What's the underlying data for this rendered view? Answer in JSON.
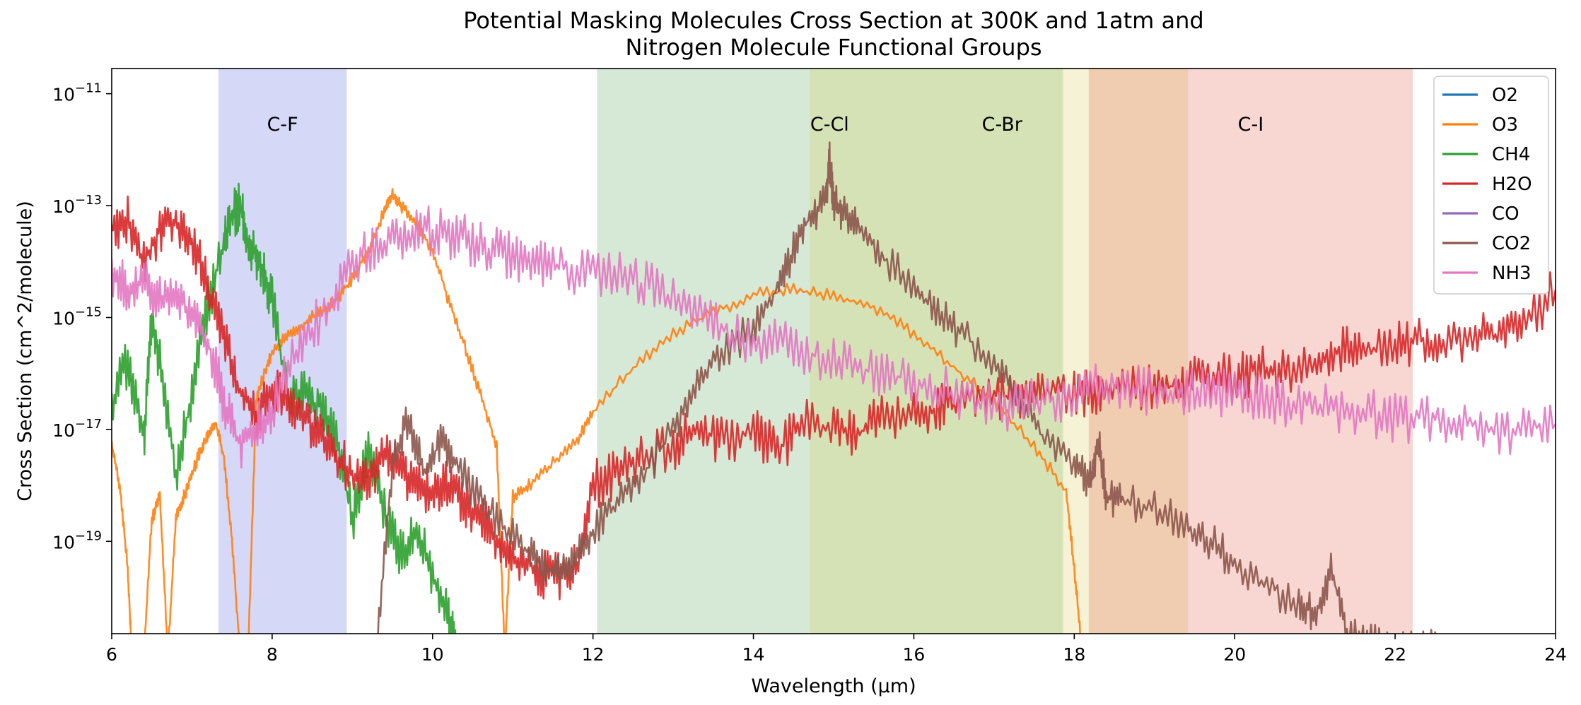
{
  "chart_data": {
    "type": "line",
    "title_lines": [
      "Potential Masking Molecules Cross Section at 300K and 1atm and",
      "Nitrogen Molecule Functional Groups"
    ],
    "xlabel": "Wavelength (μm)",
    "ylabel": "Cross Section (cm^2/molecule)",
    "xlim": [
      6,
      24
    ],
    "ylog": true,
    "ylim_exp": [
      -20.65,
      -10.55
    ],
    "x_ticks": [
      6,
      8,
      10,
      12,
      14,
      16,
      18,
      20,
      22,
      24
    ],
    "x_tick_labels": [
      "6",
      "8",
      "10",
      "12",
      "14",
      "16",
      "18",
      "20",
      "22",
      "24"
    ],
    "y_ticks_exp": [
      -11,
      -13,
      -15,
      -17,
      -19
    ],
    "y_tick_base": "10",
    "y_tick_exponents": [
      "−11",
      "−13",
      "−15",
      "−17",
      "−19"
    ],
    "grid": false,
    "legend_position": "top-right",
    "bands": [
      {
        "label": "C-F",
        "range": [
          7.33,
          8.93
        ],
        "color": "#d6d8f8",
        "label_x": 8.13
      },
      {
        "label": "",
        "range": [
          12.05,
          14.7
        ],
        "color": "#d6e8d6"
      },
      {
        "label": "C-Cl",
        "range": [
          14.7,
          17.86
        ],
        "color": "#d5e2b6",
        "label_x": 14.95
      },
      {
        "label": "C-Br",
        "range": [
          17.86,
          18.18
        ],
        "color": "#f5f2d6",
        "label_x": 17.1
      },
      {
        "label": "",
        "range": [
          18.18,
          19.42
        ],
        "color": "#f0cdb1"
      },
      {
        "label": "C-I",
        "range": [
          19.42,
          22.22
        ],
        "color": "#f8d6d2",
        "label_x": 20.2
      }
    ],
    "series": [
      {
        "name": "O2",
        "color": "#1f77b4",
        "x": [],
        "y_exp": []
      },
      {
        "name": "O3",
        "color": "#ff7f0e",
        "x": [
          6.0,
          6.1,
          6.2,
          6.25,
          6.3,
          6.4,
          6.5,
          6.6,
          6.7,
          6.8,
          6.9,
          7.0,
          7.1,
          7.2,
          7.3,
          7.4,
          7.5,
          7.6,
          7.7,
          7.8,
          7.9,
          8.0,
          8.2,
          8.4,
          8.6,
          8.8,
          9.0,
          9.2,
          9.4,
          9.5,
          9.6,
          9.8,
          10.0,
          10.2,
          10.4,
          10.6,
          10.8,
          10.9,
          11.0,
          11.2,
          11.5,
          11.8,
          12.0,
          12.5,
          13.0,
          13.5,
          14.0,
          14.5,
          15.0,
          15.5,
          16.0,
          16.5,
          17.0,
          17.5,
          17.9,
          18.0,
          18.1
        ],
        "y_exp": [
          -17.3,
          -18.0,
          -19.5,
          -21,
          -21,
          -21,
          -18.6,
          -18.2,
          -21,
          -18.6,
          -18.2,
          -17.8,
          -17.4,
          -17.1,
          -16.9,
          -17.5,
          -19.0,
          -21,
          -21,
          -16.5,
          -16.0,
          -15.6,
          -15.3,
          -15.1,
          -14.9,
          -14.7,
          -14.3,
          -13.8,
          -13.1,
          -12.8,
          -13.0,
          -13.3,
          -13.8,
          -14.7,
          -15.5,
          -16.4,
          -17.3,
          -21,
          -18.2,
          -18.0,
          -17.6,
          -17.2,
          -16.7,
          -15.9,
          -15.3,
          -14.9,
          -14.6,
          -14.5,
          -14.6,
          -14.8,
          -15.3,
          -15.9,
          -16.5,
          -17.3,
          -18.1,
          -19.5,
          -21
        ]
      },
      {
        "name": "CH4",
        "color": "#2ca02c",
        "x": [
          6.0,
          6.2,
          6.4,
          6.5,
          6.6,
          6.8,
          7.0,
          7.2,
          7.4,
          7.5,
          7.6,
          7.7,
          7.8,
          7.9,
          8.0,
          8.2,
          8.4,
          8.6,
          8.8,
          9.0,
          9.2,
          9.4,
          9.6,
          9.8,
          10.0,
          10.2,
          10.3
        ],
        "y_exp": [
          -16.5,
          -15.8,
          -17.2,
          -15.0,
          -15.8,
          -17.8,
          -16.3,
          -14.8,
          -13.6,
          -13.2,
          -13.0,
          -13.6,
          -13.9,
          -14.3,
          -14.7,
          -16.4,
          -16.4,
          -16.6,
          -17.2,
          -18.6,
          -17.4,
          -18.5,
          -19.2,
          -18.8,
          -19.6,
          -20.4,
          -21
        ]
      },
      {
        "name": "H2O",
        "color": "#d62728",
        "x": [
          6.0,
          6.2,
          6.4,
          6.6,
          6.8,
          7.0,
          7.2,
          7.4,
          7.6,
          7.8,
          8.0,
          8.2,
          8.4,
          8.6,
          8.8,
          9.0,
          9.2,
          9.4,
          9.6,
          9.8,
          10.0,
          10.2,
          10.4,
          10.6,
          10.8,
          11.0,
          11.2,
          11.4,
          11.6,
          11.8,
          12.0,
          12.3,
          12.6,
          13.0,
          13.3,
          13.6,
          14.0,
          14.3,
          14.6,
          15.0,
          15.3,
          15.6,
          16.0,
          16.3,
          16.6,
          17.0,
          17.3,
          17.6,
          18.0,
          18.3,
          18.6,
          19.0,
          19.3,
          19.6,
          20.0,
          20.3,
          20.6,
          21.0,
          21.3,
          21.6,
          22.0,
          22.3,
          22.6,
          23.0,
          23.3,
          23.6,
          24.0
        ],
        "y_exp": [
          -13.4,
          -13.2,
          -14.0,
          -13.4,
          -13.3,
          -13.6,
          -14.5,
          -15.4,
          -16.3,
          -16.8,
          -16.3,
          -16.5,
          -16.8,
          -17.0,
          -17.5,
          -17.8,
          -17.9,
          -17.5,
          -17.7,
          -18.0,
          -18.1,
          -18.0,
          -18.3,
          -18.6,
          -19.0,
          -19.3,
          -19.4,
          -19.6,
          -19.6,
          -19.4,
          -18.0,
          -17.8,
          -17.5,
          -17.3,
          -17.0,
          -17.2,
          -17.0,
          -17.4,
          -16.9,
          -17.0,
          -17.1,
          -16.8,
          -16.8,
          -16.6,
          -16.5,
          -16.4,
          -16.4,
          -16.3,
          -16.3,
          -16.4,
          -16.2,
          -16.3,
          -16.2,
          -16.0,
          -16.1,
          -15.9,
          -16.0,
          -15.9,
          -15.6,
          -15.6,
          -15.5,
          -15.4,
          -15.5,
          -15.4,
          -15.3,
          -15.2,
          -14.5
        ]
      },
      {
        "name": "CO",
        "color": "#9467bd",
        "x": [],
        "y_exp": []
      },
      {
        "name": "CO2",
        "color": "#8c564b",
        "x": [
          9.3,
          9.5,
          9.7,
          9.9,
          10.1,
          10.3,
          10.6,
          10.9,
          11.2,
          11.4,
          11.6,
          11.8,
          12.0,
          12.3,
          12.6,
          13.0,
          13.3,
          13.6,
          14.0,
          14.3,
          14.5,
          14.7,
          14.9,
          14.95,
          15.0,
          15.1,
          15.3,
          15.6,
          16.0,
          16.3,
          16.6,
          17.0,
          17.3,
          17.6,
          18.0,
          18.2,
          18.3,
          18.4,
          18.6,
          19.0,
          19.4,
          19.7,
          20.0,
          20.4,
          20.8,
          21.0,
          21.2,
          21.4,
          21.7,
          22.0,
          22.3,
          22.6,
          22.8
        ],
        "y_exp": [
          -21,
          -17.6,
          -16.8,
          -17.8,
          -17.2,
          -17.6,
          -18.3,
          -18.8,
          -19.2,
          -19.5,
          -19.6,
          -19.3,
          -18.8,
          -18.3,
          -17.9,
          -17.0,
          -16.2,
          -15.6,
          -15.2,
          -14.5,
          -13.8,
          -13.2,
          -12.9,
          -12.2,
          -12.9,
          -13.1,
          -13.4,
          -13.9,
          -14.5,
          -14.9,
          -15.3,
          -15.8,
          -16.5,
          -17.1,
          -17.7,
          -17.9,
          -17.2,
          -18.2,
          -18.3,
          -18.4,
          -18.7,
          -19.0,
          -19.4,
          -19.8,
          -20.1,
          -20.3,
          -19.5,
          -20.6,
          -20.8,
          -21,
          -20.8,
          -21,
          -21
        ]
      },
      {
        "name": "NH3",
        "color": "#e377c2",
        "x": [
          6.0,
          6.2,
          6.4,
          6.6,
          6.8,
          7.0,
          7.2,
          7.4,
          7.6,
          7.8,
          8.0,
          8.3,
          8.6,
          8.9,
          9.2,
          9.5,
          9.8,
          10.1,
          10.4,
          10.7,
          11.0,
          11.3,
          11.6,
          12.0,
          12.4,
          12.8,
          13.2,
          13.6,
          14.0,
          14.4,
          14.8,
          15.2,
          15.6,
          16.0,
          16.4,
          16.8,
          17.2,
          17.6,
          18.0,
          18.4,
          18.8,
          19.2,
          19.6,
          20.0,
          20.4,
          20.8,
          21.2,
          21.6,
          22.0,
          22.4,
          22.8,
          23.2,
          23.6,
          24.0
        ],
        "y_exp": [
          -14.2,
          -14.5,
          -14.3,
          -14.7,
          -14.6,
          -15.0,
          -15.4,
          -16.5,
          -17.3,
          -17.0,
          -16.6,
          -15.6,
          -15.0,
          -14.3,
          -13.8,
          -13.6,
          -13.4,
          -13.5,
          -13.6,
          -13.8,
          -13.9,
          -14.0,
          -14.1,
          -14.2,
          -14.3,
          -14.5,
          -14.8,
          -15.2,
          -15.4,
          -15.5,
          -15.7,
          -15.9,
          -16.0,
          -16.1,
          -16.3,
          -16.5,
          -16.6,
          -16.5,
          -16.4,
          -16.2,
          -16.3,
          -16.4,
          -16.3,
          -16.4,
          -16.5,
          -16.5,
          -16.6,
          -16.7,
          -16.8,
          -16.8,
          -16.9,
          -17.0,
          -17.0,
          -16.9
        ]
      }
    ]
  }
}
